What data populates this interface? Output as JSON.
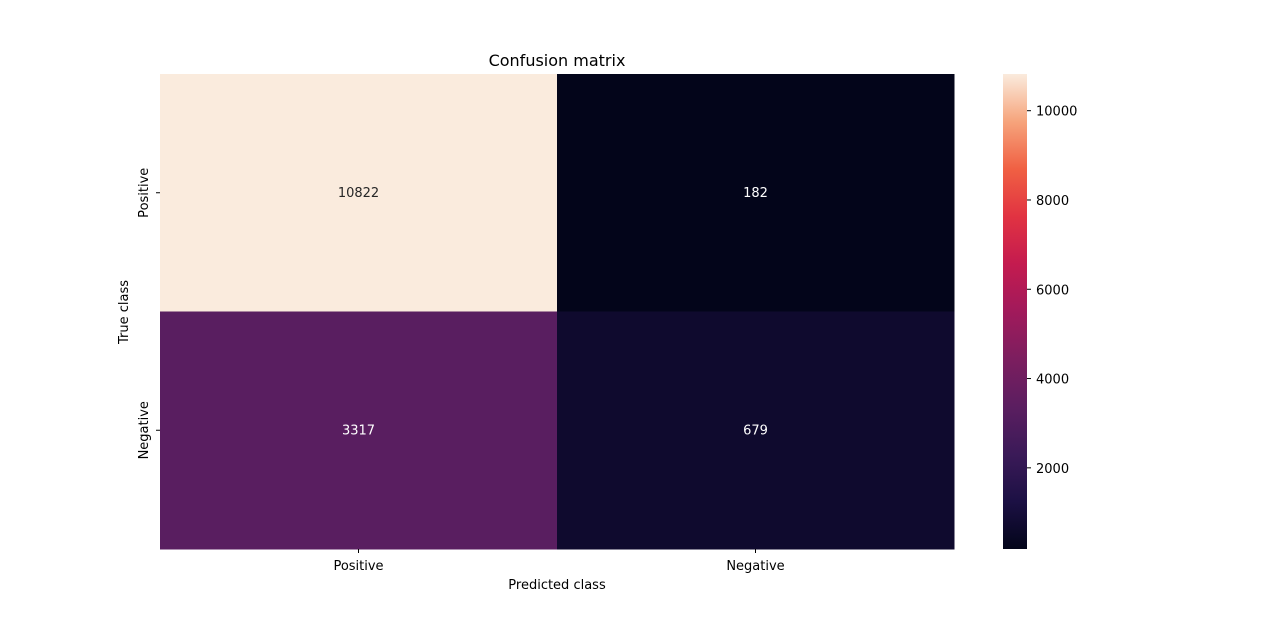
{
  "chart_data": {
    "type": "heatmap",
    "title": "Confusion matrix",
    "xlabel": "Predicted class",
    "ylabel": "True class",
    "x_categories": [
      "Positive",
      "Negative"
    ],
    "y_categories": [
      "Positive",
      "Negative"
    ],
    "values": [
      [
        10822,
        182
      ],
      [
        3317,
        679
      ]
    ],
    "colormap": "rocket",
    "colorbar": {
      "min": 182,
      "max": 10822,
      "ticks": [
        2000,
        4000,
        6000,
        8000,
        10000
      ]
    },
    "grid": false
  }
}
